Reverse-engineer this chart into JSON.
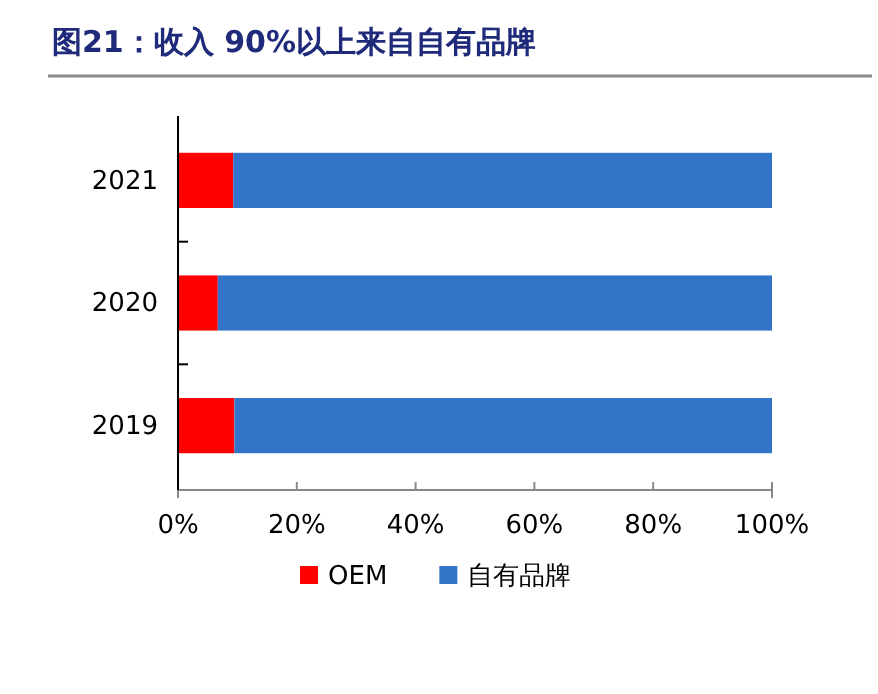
{
  "chart_data": {
    "type": "bar",
    "title": "图21：收入 90%以上来自自有品牌",
    "orientation": "horizontal",
    "stacked": true,
    "categories": [
      "2021",
      "2020",
      "2019"
    ],
    "series": [
      {
        "name": "OEM",
        "color": "#ff0000",
        "values": [
          9.3,
          6.7,
          9.5
        ]
      },
      {
        "name": "自有品牌",
        "color": "#3275c8",
        "values": [
          90.7,
          93.3,
          90.5
        ]
      }
    ],
    "xlim": [
      0,
      100
    ],
    "xticks": [
      {
        "value": 0,
        "label": "0%"
      },
      {
        "value": 20,
        "label": "20%"
      },
      {
        "value": 40,
        "label": "40%"
      },
      {
        "value": 60,
        "label": "60%"
      },
      {
        "value": 80,
        "label": "80%"
      },
      {
        "value": 100,
        "label": "100%"
      }
    ],
    "grid": false,
    "legend": "bottom"
  }
}
